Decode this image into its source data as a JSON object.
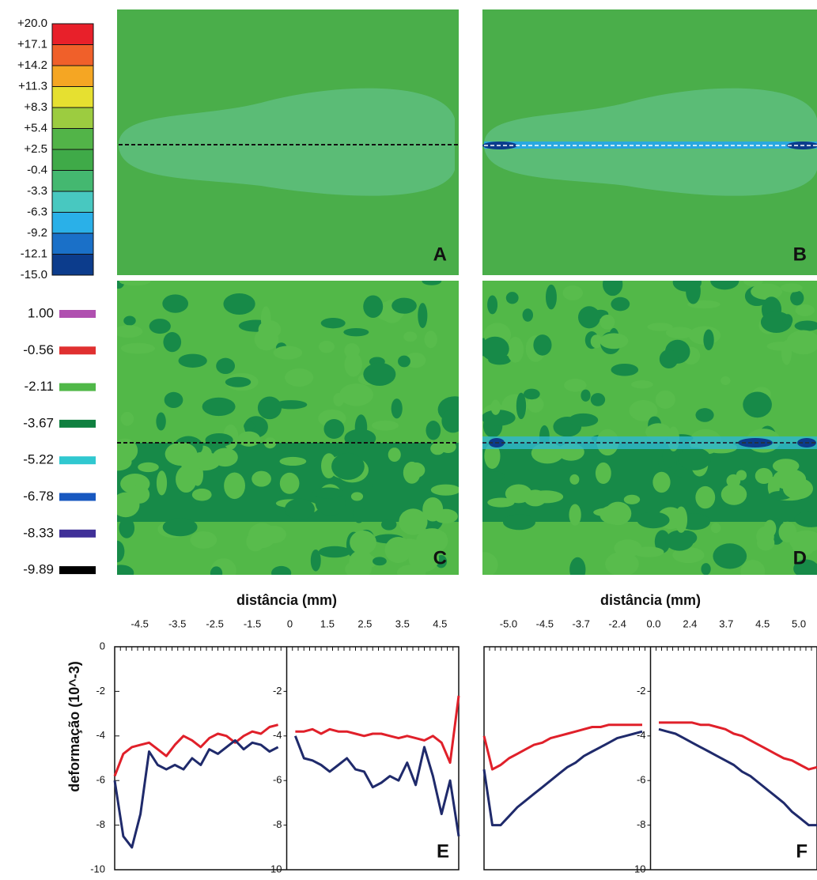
{
  "colorbar_top": {
    "labels": [
      "+20.0",
      "+17.1",
      "+14.2",
      "+11.3",
      "+8.3",
      "+5.4",
      "+2.5",
      "-0.4",
      "-3.3",
      "-6.3",
      "-9.2",
      "-12.1",
      "-15.0"
    ],
    "colors": [
      "#e8202a",
      "#f0602a",
      "#f5a623",
      "#e6e030",
      "#9ccc40",
      "#52b448",
      "#3faa48",
      "#44b870",
      "#48c8c0",
      "#2ab0e8",
      "#1a70c8",
      "#0c3c8c"
    ]
  },
  "colorbar_bottom": {
    "labels": [
      "1.00",
      "-0.56",
      "-2.11",
      "-3.67",
      "-5.22",
      "-6.78",
      "-8.33",
      "-9.89"
    ],
    "colors": [
      "#b050b0",
      "#e03030",
      "#50b848",
      "#108040",
      "#30c8d0",
      "#1858c0",
      "#403098",
      "#000000"
    ]
  },
  "panels": [
    "A",
    "B",
    "C",
    "D"
  ],
  "chart_data": [
    {
      "type": "line",
      "panel_label": "E",
      "x_label": "distância (mm)",
      "y_label": "deformação (10^-3)",
      "xticks": [
        -4.5,
        -3.5,
        -2.5,
        -1.5,
        0,
        1.5,
        2.5,
        3.5,
        4.5
      ],
      "ylim": [
        -10,
        0
      ],
      "yticks": [
        0,
        -2,
        -4,
        -6,
        -8,
        -10
      ],
      "series": [
        {
          "color": "#e0202a",
          "values": [
            -5.8,
            -4.8,
            -4.5,
            -4.4,
            -4.3,
            -4.6,
            -4.9,
            -4.4,
            -4.0,
            -4.2,
            -4.5,
            -4.1,
            -3.9,
            -4.0,
            -4.3,
            -4.0,
            -3.8,
            -3.9,
            -3.6,
            -3.5,
            null,
            -3.8,
            -3.8,
            -3.7,
            -3.9,
            -3.7,
            -3.8,
            -3.8,
            -3.9,
            -4.0,
            -3.9,
            -3.9,
            -4.0,
            -4.1,
            -4.0,
            -4.1,
            -4.2,
            -4.0,
            -4.3,
            -5.2,
            -2.2
          ]
        },
        {
          "color": "#1f2a6b",
          "values": [
            -6.0,
            -8.5,
            -9.0,
            -7.5,
            -4.7,
            -5.3,
            -5.5,
            -5.3,
            -5.5,
            -5.0,
            -5.3,
            -4.6,
            -4.8,
            -4.5,
            -4.2,
            -4.6,
            -4.3,
            -4.4,
            -4.7,
            -4.5,
            null,
            -4.0,
            -5.0,
            -5.1,
            -5.3,
            -5.6,
            -5.3,
            -5.0,
            -5.5,
            -5.6,
            -6.3,
            -6.1,
            -5.8,
            -6.0,
            -5.2,
            -6.2,
            -4.5,
            -5.8,
            -7.5,
            -6.0,
            -8.5
          ]
        }
      ]
    },
    {
      "type": "line",
      "panel_label": "F",
      "x_label": "distância (mm)",
      "xticks": [
        {
          "value": -5,
          "label": "-5.0"
        },
        -4.5,
        -3.7,
        -2.4,
        {
          "value": 0,
          "label": "0.0"
        },
        2.4,
        3.7,
        4.5,
        {
          "value": 5,
          "label": "5.0"
        }
      ],
      "ylim": [
        -10,
        0
      ],
      "yticks": [
        0,
        -2,
        -4,
        -6,
        -8,
        -10
      ],
      "series": [
        {
          "color": "#e0202a",
          "values": [
            -4.0,
            -5.5,
            -5.3,
            -5.0,
            -4.8,
            -4.6,
            -4.4,
            -4.3,
            -4.1,
            -4.0,
            -3.9,
            -3.8,
            -3.7,
            -3.6,
            -3.6,
            -3.5,
            -3.5,
            -3.5,
            -3.5,
            -3.5,
            null,
            -3.4,
            -3.4,
            -3.4,
            -3.4,
            -3.4,
            -3.5,
            -3.5,
            -3.6,
            -3.7,
            -3.9,
            -4.0,
            -4.2,
            -4.4,
            -4.6,
            -4.8,
            -5.0,
            -5.1,
            -5.3,
            -5.5,
            -5.4
          ]
        },
        {
          "color": "#1f2a6b",
          "values": [
            -5.5,
            -8.0,
            -8.0,
            -7.6,
            -7.2,
            -6.9,
            -6.6,
            -6.3,
            -6.0,
            -5.7,
            -5.4,
            -5.2,
            -4.9,
            -4.7,
            -4.5,
            -4.3,
            -4.1,
            -4.0,
            -3.9,
            -3.8,
            null,
            -3.7,
            -3.8,
            -3.9,
            -4.1,
            -4.3,
            -4.5,
            -4.7,
            -4.9,
            -5.1,
            -5.3,
            -5.6,
            -5.8,
            -6.1,
            -6.4,
            -6.7,
            -7.0,
            -7.4,
            -7.7,
            -8.0,
            -8.0
          ]
        }
      ]
    }
  ]
}
